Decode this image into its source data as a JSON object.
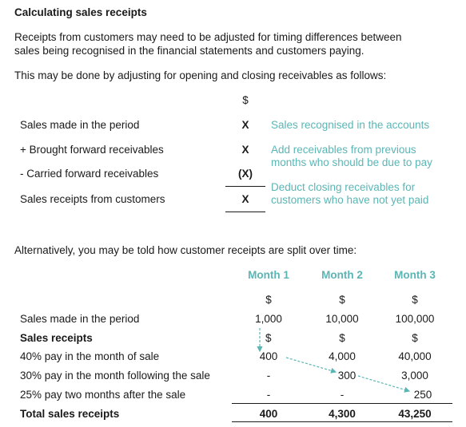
{
  "title": "Calculating sales receipts",
  "intro": {
    "line1": "Receipts from customers may need to be adjusted for timing differences between",
    "line2": "sales being recognised in the financial statements and customers paying.",
    "line3": "This may be done by adjusting for opening and closing receivables as follows:"
  },
  "calc_table": {
    "currency_header": "$",
    "rows": [
      {
        "label": "Sales made in the period",
        "value": "X",
        "note_lines": [
          "Sales recognised in the accounts"
        ]
      },
      {
        "label": "+ Brought forward receivables",
        "value": "X",
        "note_lines": [
          "Add receivables from previous",
          "months who should be due to pay"
        ]
      },
      {
        "label": "- Carried forward receivables",
        "value": "(X)",
        "note_lines": [
          "Deduct closing receivables for",
          "customers who have not yet paid"
        ]
      },
      {
        "label": "Sales receipts from customers",
        "value": "X",
        "note_lines": []
      }
    ]
  },
  "alt_intro": "Alternatively, you may be told how customer receipts are split over time:",
  "months_table": {
    "headers": [
      "Month 1",
      "Month 2",
      "Month 3"
    ],
    "currency_row": [
      "$",
      "$",
      "$"
    ],
    "rows": [
      {
        "label": "Sales made in the period",
        "bold": false,
        "values": [
          "1,000",
          "10,000",
          "100,000"
        ]
      },
      {
        "label": "Sales receipts",
        "bold": true,
        "values": [
          "$",
          "$",
          "$"
        ]
      },
      {
        "label": "40% pay in the month of sale",
        "bold": false,
        "values": [
          "400",
          "4,000",
          "40,000"
        ]
      },
      {
        "label": "30% pay in the month following the sale",
        "bold": false,
        "values": [
          "-",
          "300",
          "3,000"
        ]
      },
      {
        "label": "25% pay two months after the sale",
        "bold": false,
        "values": [
          "-",
          "-",
          "250"
        ]
      }
    ],
    "total": {
      "label": "Total sales receipts",
      "values": [
        "400",
        "4,300",
        "43,250"
      ]
    }
  },
  "colors": {
    "accent": "#5cb5b5",
    "text": "#1a1a1a"
  }
}
